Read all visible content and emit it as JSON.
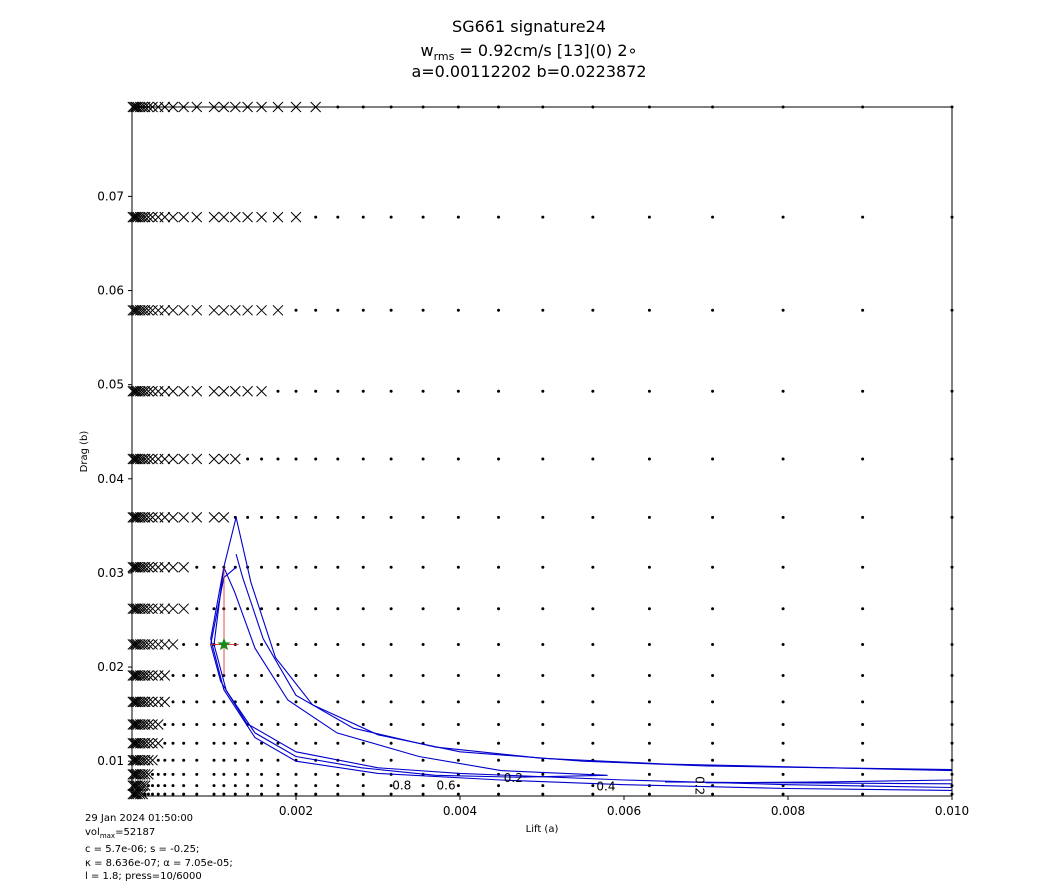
{
  "chart_data": {
    "type": "scatter",
    "title_lines": [
      "SG661 signature24",
      "a=0.00112202 b=0.0223872"
    ],
    "title_wrms": {
      "prefix": "w",
      "sub": "rms",
      "suffix": " = 0.92cm/s [13](0) 2∘"
    },
    "xlabel": "Lift (a)",
    "ylabel": "Drag (b)",
    "xlim": [
      0.0,
      0.01
    ],
    "ylim": [
      0.0063,
      0.0795
    ],
    "xticks": [
      0.002,
      0.004,
      0.006,
      0.008,
      0.01
    ],
    "xtick_labels": [
      "0.002",
      "0.004",
      "0.006",
      "0.008",
      "0.010"
    ],
    "yticks": [
      0.01,
      0.02,
      0.03,
      0.04,
      0.05,
      0.06,
      0.07
    ],
    "ytick_labels": [
      "0.01",
      "0.02",
      "0.03",
      "0.04",
      "0.05",
      "0.06",
      "0.07"
    ],
    "grid": false,
    "grid_rows": [
      {
        "b": 0.0795,
        "cross_until": 0.00225
      },
      {
        "b": 0.0678,
        "cross_until": 0.002
      },
      {
        "b": 0.0579,
        "cross_until": 0.0018
      },
      {
        "b": 0.0493,
        "cross_until": 0.0016
      },
      {
        "b": 0.0421,
        "cross_until": 0.00127
      },
      {
        "b": 0.0359,
        "cross_until": 0.00112
      },
      {
        "b": 0.0306,
        "cross_until": 0.00071
      },
      {
        "b": 0.0262,
        "cross_until": 0.00063
      },
      {
        "b": 0.0224,
        "cross_until": 0.0005
      },
      {
        "b": 0.0191,
        "cross_until": 0.0004
      },
      {
        "b": 0.0163,
        "cross_until": 0.0004
      },
      {
        "b": 0.0139,
        "cross_until": 0.00032
      },
      {
        "b": 0.0119,
        "cross_until": 0.00032
      },
      {
        "b": 0.0101,
        "cross_until": 0.00025
      },
      {
        "b": 0.0086,
        "cross_until": 0.0002
      },
      {
        "b": 0.0074,
        "cross_until": 0.00016
      },
      {
        "b": 0.0065,
        "cross_until": 0.00014
      }
    ],
    "grid_columns": [
      1e-05,
      3e-05,
      5e-05,
      7e-05,
      0.0001,
      0.00013,
      0.00016,
      0.0002,
      0.00025,
      0.00032,
      0.0004,
      0.0005,
      0.00063,
      0.00079,
      0.001,
      0.00112,
      0.00126,
      0.00141,
      0.00158,
      0.00178,
      0.002,
      0.00224,
      0.00251,
      0.00282,
      0.00316,
      0.00355,
      0.00398,
      0.00447,
      0.00501,
      0.00562,
      0.00631,
      0.00708,
      0.00794,
      0.00891,
      0.01
    ],
    "best_fit": {
      "a": 0.00112202,
      "b": 0.0223872
    },
    "error_bars": {
      "a_min": 0.00095,
      "a_max": 0.0013,
      "b_min": 0.0191,
      "b_max": 0.0306
    },
    "contours": [
      {
        "level": "0.8",
        "points": [
          [
            0.00127,
            0.0359
          ],
          [
            0.00112,
            0.0306
          ],
          [
            0.00096,
            0.023
          ],
          [
            0.00112,
            0.0176
          ],
          [
            0.0015,
            0.0125
          ],
          [
            0.002,
            0.01
          ],
          [
            0.003,
            0.0087
          ],
          [
            0.0045,
            0.008
          ],
          [
            0.006,
            0.0075
          ],
          [
            0.008,
            0.0071
          ],
          [
            0.01,
            0.0069
          ]
        ]
      },
      {
        "level": "0.6",
        "points": [
          [
            0.00127,
            0.0306
          ],
          [
            0.00112,
            0.0295
          ],
          [
            0.00096,
            0.0224
          ],
          [
            0.00108,
            0.0185
          ],
          [
            0.0014,
            0.014
          ],
          [
            0.002,
            0.011
          ],
          [
            0.003,
            0.0093
          ],
          [
            0.004,
            0.0087
          ],
          [
            0.006,
            0.008
          ],
          [
            0.008,
            0.0075
          ],
          [
            0.01,
            0.0072
          ]
        ]
      },
      {
        "level": "0.4",
        "points": [
          [
            0.00112,
            0.0306
          ],
          [
            0.00125,
            0.028
          ],
          [
            0.0015,
            0.022
          ],
          [
            0.0019,
            0.0165
          ],
          [
            0.0025,
            0.013
          ],
          [
            0.0035,
            0.0105
          ],
          [
            0.0045,
            0.009
          ],
          [
            0.0058,
            0.0085
          ],
          [
            0.0047,
            0.0083
          ],
          [
            0.0037,
            0.0085
          ],
          [
            0.0028,
            0.0093
          ],
          [
            0.002,
            0.0105
          ],
          [
            0.0015,
            0.013
          ],
          [
            0.00115,
            0.0175
          ],
          [
            0.001,
            0.0224
          ],
          [
            0.00112,
            0.0306
          ]
        ]
      },
      {
        "level": "0.2",
        "points": [
          [
            0.00127,
            0.0359
          ],
          [
            0.00145,
            0.029
          ],
          [
            0.00175,
            0.021
          ],
          [
            0.0022,
            0.016
          ],
          [
            0.003,
            0.0128
          ],
          [
            0.004,
            0.011
          ],
          [
            0.0055,
            0.01
          ],
          [
            0.007,
            0.0095
          ],
          [
            0.0085,
            0.0093
          ],
          [
            0.01,
            0.0091
          ]
        ]
      },
      {
        "level": "0.2",
        "points": [
          [
            0.01,
            0.008
          ],
          [
            0.0085,
            0.0078
          ],
          [
            0.007,
            0.0077
          ]
        ]
      },
      {
        "level": "",
        "points": [
          [
            0.00127,
            0.032
          ],
          [
            0.00135,
            0.0295
          ],
          [
            0.0016,
            0.023
          ],
          [
            0.002,
            0.017
          ],
          [
            0.0027,
            0.0135
          ],
          [
            0.0037,
            0.0115
          ],
          [
            0.005,
            0.0103
          ],
          [
            0.0065,
            0.0097
          ],
          [
            0.008,
            0.0094
          ],
          [
            0.01,
            0.009
          ]
        ]
      },
      {
        "level": "",
        "points": [
          [
            0.01,
            0.0076
          ],
          [
            0.008,
            0.0077
          ],
          [
            0.0065,
            0.0078
          ]
        ]
      }
    ],
    "contour_labels": [
      {
        "text": "0.8",
        "a": 0.00329,
        "b": 0.0074
      },
      {
        "text": "0.6",
        "a": 0.00383,
        "b": 0.0074
      },
      {
        "text": "0.2",
        "a": 0.00465,
        "b": 0.0082
      },
      {
        "text": "0.4",
        "a": 0.00578,
        "b": 0.0073
      },
      {
        "text": "0.2",
        "a": 0.00692,
        "b": 0.0074,
        "rotate": 90
      }
    ]
  },
  "footer": {
    "date": "29 Jan 2024 01:50:00",
    "vol_prefix": "vol",
    "vol_sub": "max",
    "vol_suffix": "=52187",
    "line3": "c = 5.7e-06; s = -0.25;",
    "line4": "κ = 8.636e-07; α = 7.05e-05;",
    "line5": "l = 1.8; press=10/6000"
  },
  "colors": {
    "contour": "#0000cc",
    "error_bar": "#dd2222",
    "best_fit": "#1a8a1a",
    "marker": "#000000"
  }
}
